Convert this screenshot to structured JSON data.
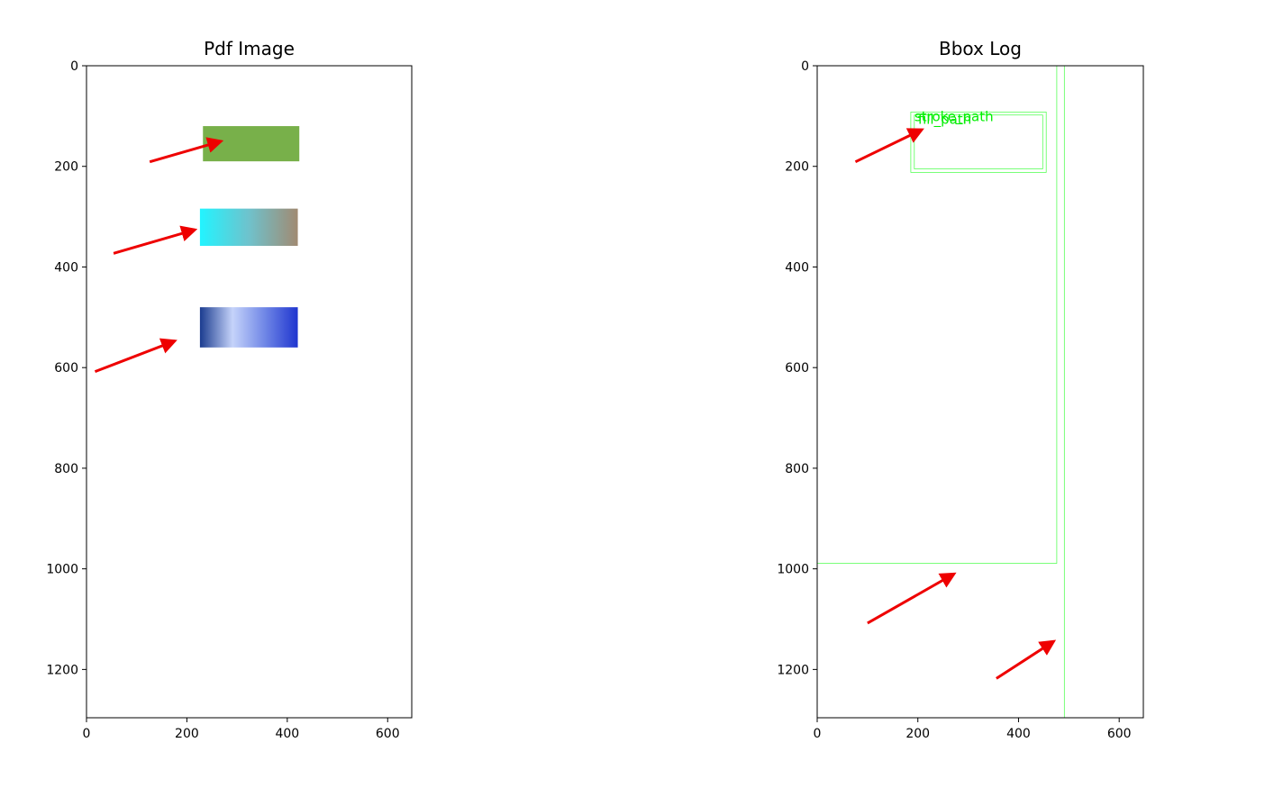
{
  "chart_data": [
    {
      "type": "image",
      "title": "Pdf Image",
      "xlim": [
        0,
        648
      ],
      "ylim": [
        1296,
        0
      ],
      "x_ticks": [
        0,
        200,
        400,
        600
      ],
      "y_ticks": [
        0,
        200,
        400,
        600,
        800,
        1000,
        1200
      ],
      "grid": false,
      "rects": [
        {
          "name": "green-rect",
          "x0": 232,
          "y0": 120,
          "x1": 424,
          "y1": 190,
          "colors": [
            "#78b04a",
            "#78b04a"
          ]
        },
        {
          "name": "cyan-gradient-rect",
          "x0": 226,
          "y0": 284,
          "x1": 421,
          "y1": 358,
          "colors": [
            "#22f4ff",
            "#6fc2cc",
            "#a18a72"
          ]
        },
        {
          "name": "blue-gradient-rect",
          "x0": 226,
          "y0": 480,
          "x1": 421,
          "y1": 560,
          "colors": [
            "#1b3c8f",
            "#c5d3fa",
            "#6f86e6",
            "#1f35cf"
          ]
        }
      ],
      "arrows": [
        {
          "from": [
            126,
            191
          ],
          "to": [
            268,
            150
          ]
        },
        {
          "from": [
            54,
            373
          ],
          "to": [
            216,
            326
          ]
        },
        {
          "from": [
            17,
            608
          ],
          "to": [
            176,
            547
          ]
        }
      ]
    },
    {
      "type": "image",
      "title": "Bbox Log",
      "xlim": [
        0,
        648
      ],
      "ylim": [
        1296,
        0
      ],
      "x_ticks": [
        0,
        200,
        400,
        600
      ],
      "y_ticks": [
        0,
        200,
        400,
        600,
        800,
        1000,
        1200
      ],
      "grid": false,
      "box_color": "#00ff00",
      "boxes": [
        {
          "name": "stroke-path-box",
          "x0": 186,
          "y0": 92,
          "x1": 455,
          "y1": 212,
          "label": "stroke_path"
        },
        {
          "name": "fill-path-box",
          "x0": 193,
          "y0": 98,
          "x1": 448,
          "y1": 205,
          "label": "fill_path"
        },
        {
          "name": "page-bbox-left",
          "x0": 0,
          "y0": 0,
          "x1": 476,
          "y1": 989
        },
        {
          "name": "page-bbox-right",
          "x0": 0,
          "y0": 0,
          "x1": 491,
          "y1": 1296
        }
      ],
      "arrows": [
        {
          "from": [
            76,
            191
          ],
          "to": [
            208,
            127
          ]
        },
        {
          "from": [
            100,
            1108
          ],
          "to": [
            272,
            1010
          ]
        },
        {
          "from": [
            356,
            1218
          ],
          "to": [
            470,
            1144
          ]
        }
      ]
    }
  ]
}
